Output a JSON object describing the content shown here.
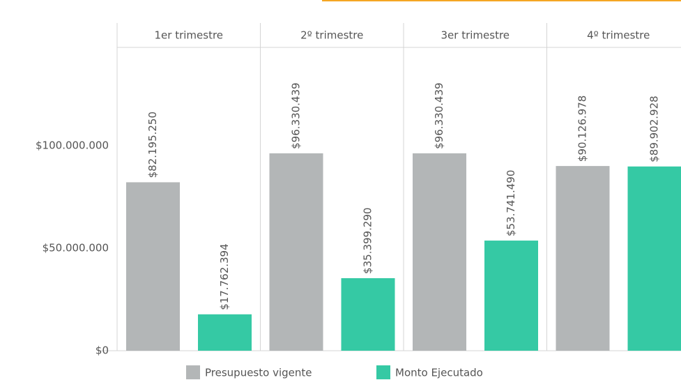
{
  "chart_data": {
    "type": "bar",
    "categories": [
      "1er trimestre",
      "2º trimestre",
      "3er trimestre",
      "4º trimestre"
    ],
    "series": [
      {
        "name": "Presupuesto vigente",
        "color": "#b3b6b7",
        "values": [
          82195250,
          96330439,
          96330439,
          90126978
        ],
        "value_labels": [
          "$82.195.250",
          "$96.330.439",
          "$96.330.439",
          "$90.126.978"
        ]
      },
      {
        "name": "Monto Ejecutado",
        "color": "#35c9a4",
        "values": [
          17762394,
          35399290,
          53741490,
          89902928
        ],
        "value_labels": [
          "$17.762.394",
          "$35.399.290",
          "$53.741.490",
          "$89.902.928"
        ]
      }
    ],
    "ylim": [
      0,
      148000000
    ],
    "yticks": [
      {
        "value": 0,
        "label": "$0"
      },
      {
        "value": 50000000,
        "label": "$50.000.000"
      },
      {
        "value": 100000000,
        "label": "$100.000.000"
      }
    ]
  }
}
